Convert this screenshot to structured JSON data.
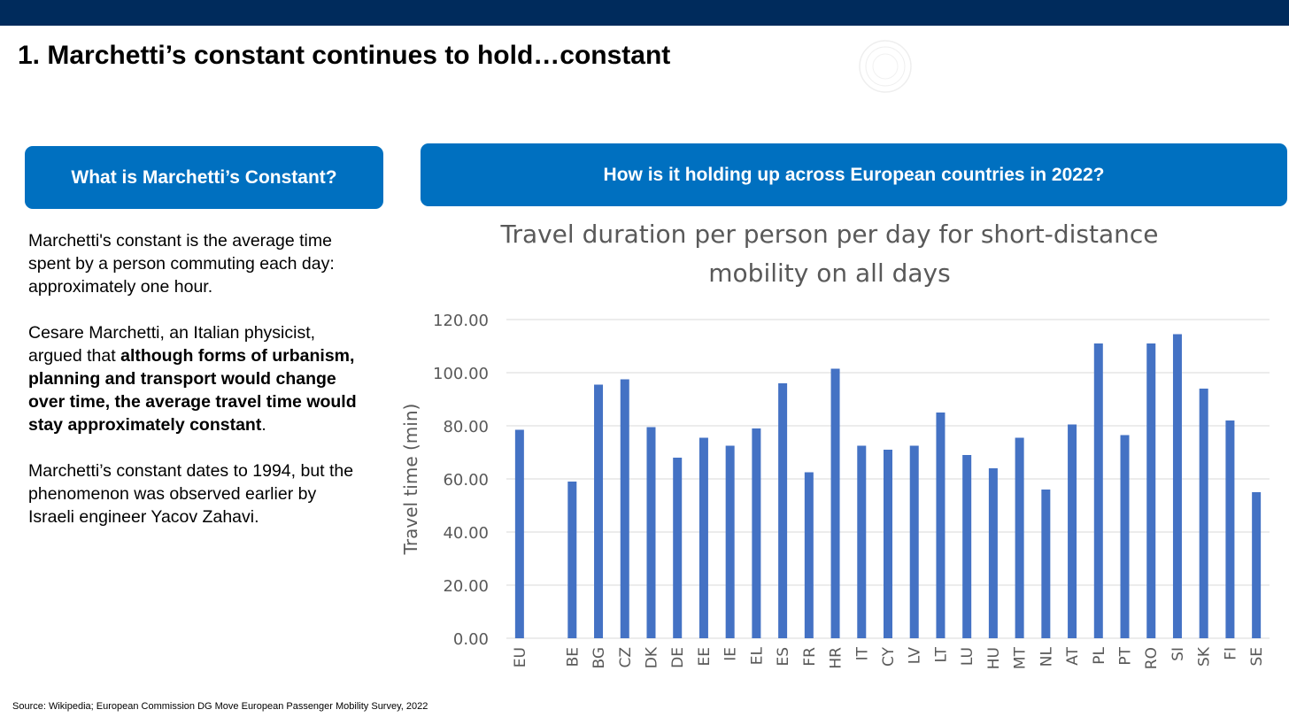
{
  "header": {
    "title": "1. Marchetti’s constant continues to hold…constant"
  },
  "left_panel": {
    "heading": "What is Marchetti’s Constant?",
    "para1": "Marchetti's constant is the average time spent by a person commuting each day: approximately one hour.",
    "para2_plain": "Cesare Marchetti, an Italian physicist, argued that ",
    "para2_bold": "although forms of urbanism, planning and transport would change over time, the average travel time would stay approximately constant",
    "para2_end": ".",
    "para3": "Marchetti’s constant dates to 1994, but the phenomenon was observed earlier by Israeli engineer Yacov Zahavi."
  },
  "right_panel": {
    "heading": "How is it holding up across European countries in 2022?"
  },
  "source": "Source: Wikipedia; European Commission DG Move European Passenger Mobility Survey, 2022",
  "colors": {
    "topbar": "#002b5c",
    "accent": "#0070c0",
    "bar": "#4472c4",
    "grid": "#d9d9d9",
    "axis_text": "#595959"
  },
  "chart_data": {
    "type": "bar",
    "title": "Travel duration per person per day for short-distance mobility on all days",
    "title_lines": [
      "Travel duration per person per day for short-distance",
      "mobility on all days"
    ],
    "xlabel": "",
    "ylabel": "Travel time (min)",
    "ylim": [
      0,
      120
    ],
    "yticks": [
      "0.00",
      "20.00",
      "40.00",
      "60.00",
      "80.00",
      "100.00",
      "120.00"
    ],
    "grid": true,
    "categories": [
      "EU",
      "",
      "BE",
      "BG",
      "CZ",
      "DK",
      "DE",
      "EE",
      "IE",
      "EL",
      "ES",
      "FR",
      "HR",
      "IT",
      "CY",
      "LV",
      "LT",
      "LU",
      "HU",
      "MT",
      "NL",
      "AT",
      "PL",
      "PT",
      "RO",
      "SI",
      "SK",
      "FI",
      "SE"
    ],
    "values": [
      78.5,
      null,
      59,
      95.5,
      97.5,
      79.5,
      68,
      75.5,
      72.5,
      79,
      96,
      62.5,
      101.5,
      72.5,
      71,
      72.5,
      85,
      69,
      64,
      75.5,
      56,
      80.5,
      111,
      76.5,
      111,
      114.5,
      94,
      82,
      55
    ]
  }
}
